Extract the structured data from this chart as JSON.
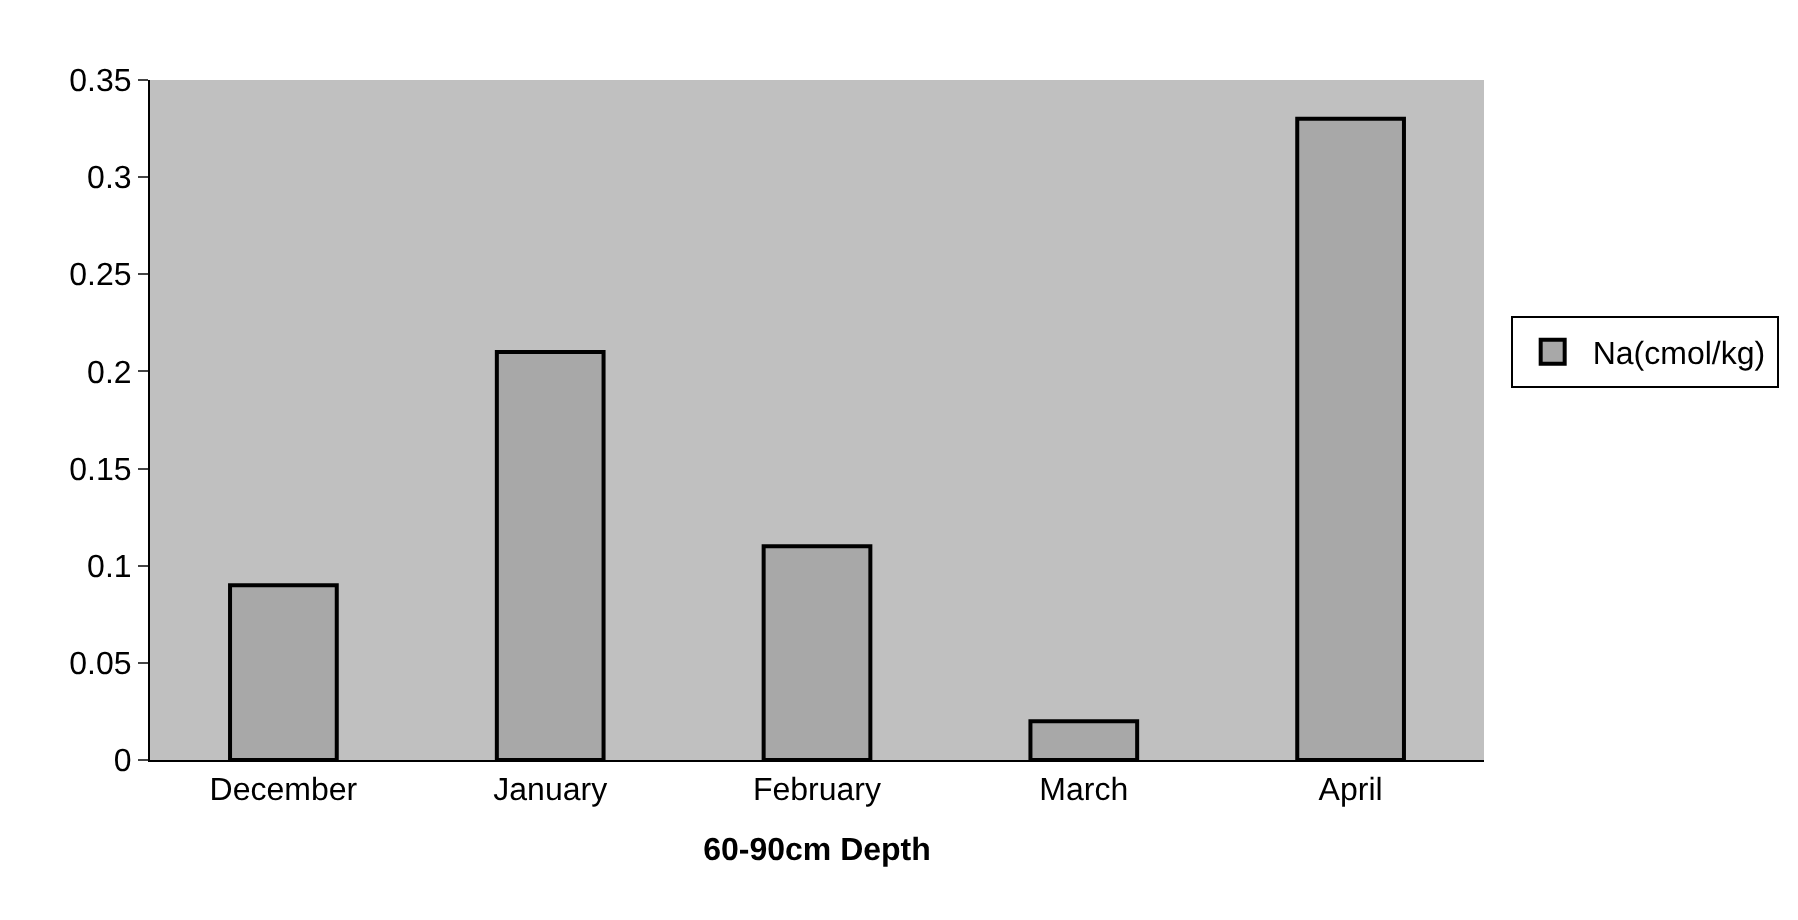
{
  "chart_data": {
    "type": "bar",
    "xlabel": "60-90cm Depth",
    "categories": [
      "December",
      "January",
      "February",
      "March",
      "April"
    ],
    "series": [
      {
        "name": "Na(cmol/kg)",
        "color": "#a8a8a8",
        "values": [
          0.09,
          0.21,
          0.11,
          0.02,
          0.33
        ]
      }
    ],
    "ylim": [
      0,
      0.35
    ],
    "yticks": [
      0,
      0.05,
      0.1,
      0.15,
      0.2,
      0.25,
      0.3,
      0.35
    ],
    "grid": false,
    "legend": "right"
  }
}
